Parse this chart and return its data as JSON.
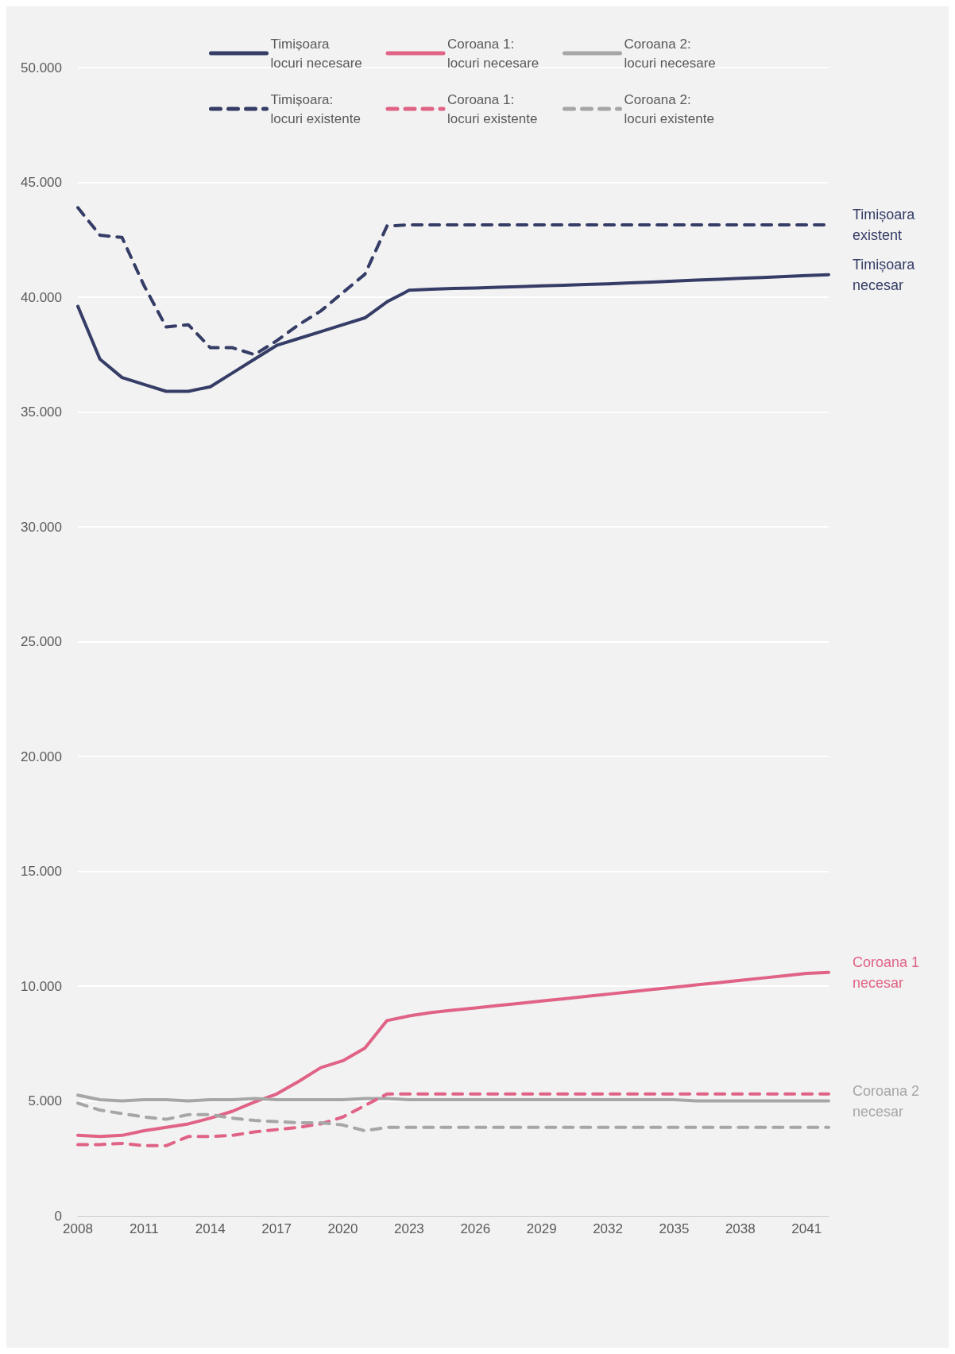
{
  "chart_data": {
    "type": "line",
    "x": [
      2008,
      2009,
      2010,
      2011,
      2012,
      2013,
      2014,
      2015,
      2016,
      2017,
      2018,
      2019,
      2020,
      2021,
      2022,
      2023,
      2024,
      2025,
      2026,
      2027,
      2028,
      2029,
      2030,
      2031,
      2032,
      2033,
      2034,
      2035,
      2036,
      2037,
      2038,
      2039,
      2040,
      2041,
      2042
    ],
    "series": [
      {
        "name": "Timișoara\nlocuri necesare",
        "color": "#353c66",
        "line_style": "solid",
        "values": [
          39600,
          37300,
          36500,
          36200,
          35900,
          35900,
          36100,
          36700,
          37300,
          37900,
          38200,
          38500,
          38800,
          39100,
          39800,
          40300,
          40350,
          40380,
          40400,
          40430,
          40460,
          40490,
          40520,
          40550,
          40580,
          40620,
          40660,
          40700,
          40740,
          40780,
          40820,
          40860,
          40900,
          40940,
          40980
        ]
      },
      {
        "name": "Coroana 1:\nlocuri necesare",
        "color": "#e06386",
        "line_style": "solid",
        "values": [
          3500,
          3450,
          3500,
          3700,
          3850,
          4000,
          4250,
          4550,
          4950,
          5300,
          5850,
          6450,
          6750,
          7300,
          8500,
          8700,
          8850,
          8950,
          9050,
          9150,
          9250,
          9350,
          9450,
          9550,
          9650,
          9750,
          9850,
          9950,
          10050,
          10150,
          10250,
          10350,
          10450,
          10550,
          10600
        ]
      },
      {
        "name": "Coroana 2:\nlocuri necesare",
        "color": "#a6a6a6",
        "line_style": "solid",
        "values": [
          5250,
          5050,
          5000,
          5050,
          5050,
          5000,
          5050,
          5050,
          5100,
          5050,
          5050,
          5050,
          5050,
          5100,
          5100,
          5050,
          5050,
          5050,
          5050,
          5050,
          5050,
          5050,
          5050,
          5050,
          5050,
          5050,
          5050,
          5050,
          5000,
          5000,
          5000,
          5000,
          5000,
          5000,
          5000
        ]
      },
      {
        "name": "Timișoara:\nlocuri existente",
        "color": "#353c66",
        "line_style": "dashed",
        "values": [
          43900,
          42700,
          42600,
          40500,
          38700,
          38800,
          37800,
          37800,
          37500,
          38100,
          38800,
          39400,
          40200,
          41000,
          43100,
          43150,
          43150,
          43150,
          43150,
          43150,
          43150,
          43150,
          43150,
          43150,
          43150,
          43150,
          43150,
          43150,
          43150,
          43150,
          43150,
          43150,
          43150,
          43150,
          43150
        ]
      },
      {
        "name": "Coroana 1:\nlocuri existente",
        "color": "#e06386",
        "line_style": "dashed",
        "values": [
          3100,
          3100,
          3150,
          3050,
          3050,
          3450,
          3450,
          3500,
          3650,
          3750,
          3850,
          4000,
          4300,
          4800,
          5300,
          5300,
          5300,
          5300,
          5300,
          5300,
          5300,
          5300,
          5300,
          5300,
          5300,
          5300,
          5300,
          5300,
          5300,
          5300,
          5300,
          5300,
          5300,
          5300,
          5300
        ]
      },
      {
        "name": "Coroana 2:\nlocuri existente",
        "color": "#a6a6a6",
        "line_style": "dashed",
        "values": [
          4900,
          4600,
          4450,
          4300,
          4200,
          4400,
          4400,
          4250,
          4150,
          4100,
          4050,
          4050,
          3950,
          3700,
          3850,
          3850,
          3850,
          3850,
          3850,
          3850,
          3850,
          3850,
          3850,
          3850,
          3850,
          3850,
          3850,
          3850,
          3850,
          3850,
          3850,
          3850,
          3850,
          3850,
          3850
        ]
      }
    ],
    "xlim": [
      2008,
      2042
    ],
    "xticks": [
      2008,
      2011,
      2014,
      2017,
      2020,
      2023,
      2026,
      2029,
      2032,
      2035,
      2038,
      2041
    ],
    "ylim": [
      0,
      50000
    ],
    "yticks": [
      {
        "value": 0,
        "label": "0"
      },
      {
        "value": 5000,
        "label": "5.000"
      },
      {
        "value": 10000,
        "label": "10.000"
      },
      {
        "value": 15000,
        "label": "15.000"
      },
      {
        "value": 20000,
        "label": "20.000"
      },
      {
        "value": 25000,
        "label": "25.000"
      },
      {
        "value": 30000,
        "label": "30.000"
      },
      {
        "value": 35000,
        "label": "35.000"
      },
      {
        "value": 40000,
        "label": "40.000"
      },
      {
        "value": 45000,
        "label": "45.000"
      },
      {
        "value": 50000,
        "label": "50.000"
      }
    ],
    "grid": "y",
    "legend": "top",
    "marker": "none",
    "annotations": [
      "Timișoara\nexistent",
      "Timișoara\nnecesar",
      "Coroana 1\nnecesar",
      "Coroana 2\nnecesar"
    ]
  }
}
